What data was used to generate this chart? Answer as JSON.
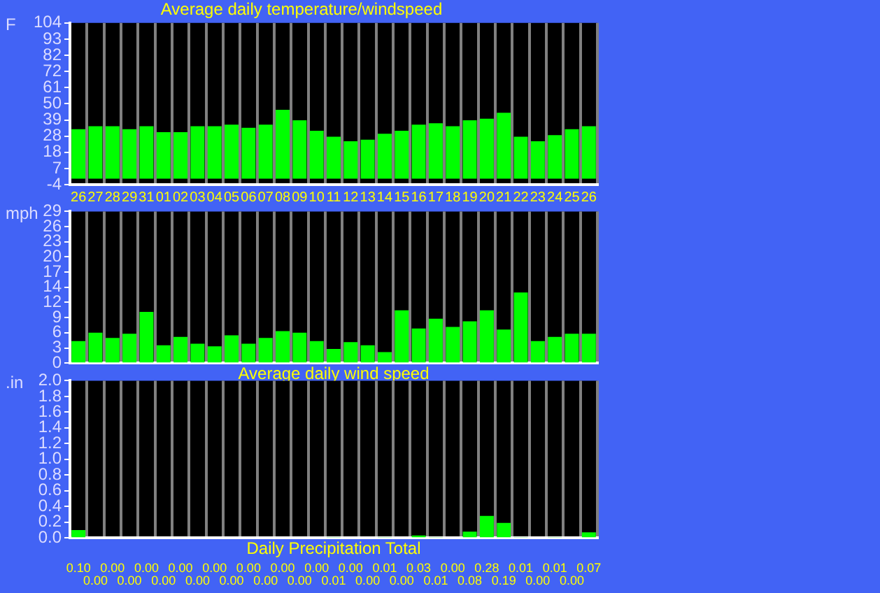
{
  "chart_data": [
    {
      "type": "bar",
      "title": "Average daily temperature/windspeed",
      "ylabel": "F",
      "categories": [
        "26",
        "27",
        "28",
        "29",
        "31",
        "01",
        "02",
        "03",
        "04",
        "05",
        "06",
        "07",
        "08",
        "09",
        "10",
        "11",
        "12",
        "13",
        "14",
        "15",
        "16",
        "17",
        "18",
        "19",
        "20",
        "21",
        "22",
        "23",
        "24",
        "25",
        "26"
      ],
      "values": [
        33,
        35,
        35,
        33,
        35,
        31,
        31,
        35,
        35,
        36,
        34,
        36,
        46,
        39,
        32,
        28,
        25,
        26,
        30,
        32,
        36,
        37,
        35,
        39,
        40,
        44,
        28,
        25,
        29,
        33,
        35
      ],
      "color": "#00ff00",
      "ylim": [
        -4,
        104
      ],
      "yticks": [
        -4,
        {
          "value": 6.8,
          "label": "7"
        },
        {
          "value": 17.6,
          "label": "18"
        },
        {
          "value": 28.4,
          "label": "28"
        },
        {
          "value": 39.2,
          "label": "39"
        },
        50,
        {
          "value": 60.8,
          "label": "61"
        },
        {
          "value": 71.6,
          "label": "72"
        },
        {
          "value": 82.4,
          "label": "82"
        },
        {
          "value": 93.2,
          "label": "93"
        },
        104
      ],
      "grid": "x"
    },
    {
      "type": "bar",
      "xlabel": "Average daily wind speed",
      "ylabel": "mph",
      "categories": [
        "26",
        "27",
        "28",
        "29",
        "31",
        "01",
        "02",
        "03",
        "04",
        "05",
        "06",
        "07",
        "08",
        "09",
        "10",
        "11",
        "12",
        "13",
        "14",
        "15",
        "16",
        "17",
        "18",
        "19",
        "20",
        "21",
        "22",
        "23",
        "24",
        "25",
        "26"
      ],
      "values": [
        4.2,
        5.8,
        4.8,
        5.6,
        9.8,
        3.4,
        5.0,
        3.7,
        3.2,
        5.3,
        3.7,
        4.8,
        6.1,
        5.8,
        4.2,
        2.7,
        4.0,
        3.4,
        2.1,
        10.1,
        6.6,
        8.5,
        6.9,
        8.0,
        10.1,
        6.4,
        13.5,
        4.2,
        5.0,
        5.6,
        5.6
      ],
      "color": "#00ff00",
      "ylim": [
        0,
        29
      ],
      "yticks": [
        0,
        {
          "value": 2.9,
          "label": "3"
        },
        {
          "value": 5.8,
          "label": "6"
        },
        {
          "value": 8.7,
          "label": "9"
        },
        {
          "value": 11.6,
          "label": "12"
        },
        {
          "value": 14.5,
          "label": "14"
        },
        {
          "value": 17.4,
          "label": "17"
        },
        {
          "value": 20.3,
          "label": "20"
        },
        {
          "value": 23.2,
          "label": "23"
        },
        {
          "value": 26.1,
          "label": "26"
        },
        29
      ],
      "grid": "x",
      "tick_labels": "y"
    },
    {
      "type": "bar",
      "xlabel": "Daily Precipitation Total",
      "ylabel": ".in",
      "categories": [
        "26",
        "27",
        "28",
        "29",
        "31",
        "01",
        "02",
        "03",
        "04",
        "05",
        "06",
        "07",
        "08",
        "09",
        "10",
        "11",
        "12",
        "13",
        "14",
        "15",
        "16",
        "17",
        "18",
        "19",
        "20",
        "21",
        "22",
        "23",
        "24",
        "25",
        "26"
      ],
      "values": [
        0.1,
        0,
        0,
        0,
        0,
        0,
        0,
        0,
        0,
        0,
        0,
        0,
        0,
        0,
        0,
        0.01,
        0,
        0,
        0.01,
        0,
        0.03,
        0.01,
        0,
        0.08,
        0.28,
        0.19,
        0.01,
        0,
        0.01,
        0,
        0.07
      ],
      "value_labels": [
        "0.10",
        "0.00",
        "0.00",
        "0.00",
        "0.00",
        "0.00",
        "0.00",
        "0.00",
        "0.00",
        "0.00",
        "0.00",
        "0.00",
        "0.00",
        "0.00",
        "0.00",
        "0.01",
        "0.00",
        "0.00",
        "0.01",
        "0.00",
        "0.03",
        "0.01",
        "0.00",
        "0.08",
        "0.28",
        "0.19",
        "0.01",
        "0.00",
        "0.01",
        "0.00",
        "0.07"
      ],
      "color": "#00ff00",
      "ylim": [
        0,
        2
      ],
      "yticks": [
        {
          "value": 0,
          "label": "0.0"
        },
        {
          "value": 0.2,
          "label": "0.2"
        },
        {
          "value": 0.4,
          "label": "0.4"
        },
        {
          "value": 0.6,
          "label": "0.6"
        },
        {
          "value": 0.8,
          "label": "0.8"
        },
        {
          "value": 1,
          "label": "1.0"
        },
        {
          "value": 1.2,
          "label": "1.2"
        },
        {
          "value": 1.4,
          "label": "1.4"
        },
        {
          "value": 1.6,
          "label": "1.6"
        },
        {
          "value": 1.8,
          "label": "1.8"
        },
        {
          "value": 2,
          "label": "2.0"
        }
      ],
      "grid": "x",
      "tick_labels": "y"
    }
  ]
}
